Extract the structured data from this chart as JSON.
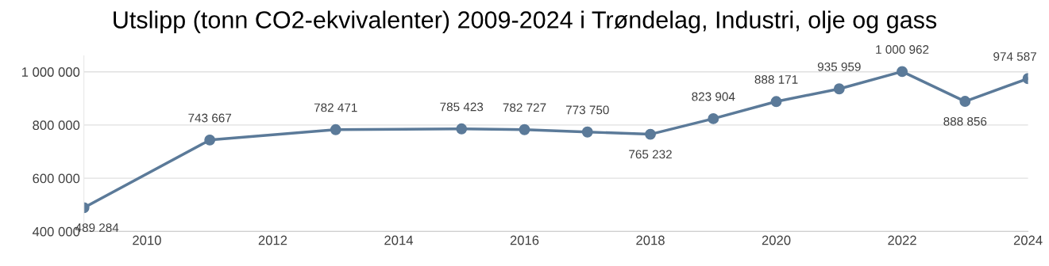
{
  "chart_data": {
    "type": "line",
    "title": "Utslipp (tonn CO2-ekvivalenter) 2009-2024 i Trøndelag, Industri, olje og gass",
    "x": [
      2009,
      2011,
      2013,
      2015,
      2016,
      2017,
      2018,
      2019,
      2020,
      2021,
      2022,
      2023,
      2024
    ],
    "series": [
      {
        "color": "#5b7a99",
        "values": [
          489284,
          743667,
          782471,
          785423,
          782727,
          773750,
          765232,
          823904,
          888171,
          935959,
          1000962,
          888856,
          974587
        ],
        "value_labels": [
          "489 284",
          "743 667",
          "782 471",
          "785 423",
          "782 727",
          "773 750",
          "765 232",
          "823 904",
          "888 171",
          "935 959",
          "1 000 962",
          "888 856",
          "974 587"
        ]
      }
    ],
    "xlim": [
      2009,
      2024
    ],
    "xticks": [
      2010,
      2012,
      2014,
      2016,
      2018,
      2020,
      2022,
      2024
    ],
    "ylim": [
      400000,
      1060000
    ],
    "yticks": [
      {
        "value": 400000,
        "label": "400 000"
      },
      {
        "value": 600000,
        "label": "600 000"
      },
      {
        "value": 800000,
        "label": "800 000"
      },
      {
        "value": 1000000,
        "label": "1 000 000"
      }
    ],
    "grid": "y",
    "marker": "circle",
    "line_style": "solid"
  }
}
